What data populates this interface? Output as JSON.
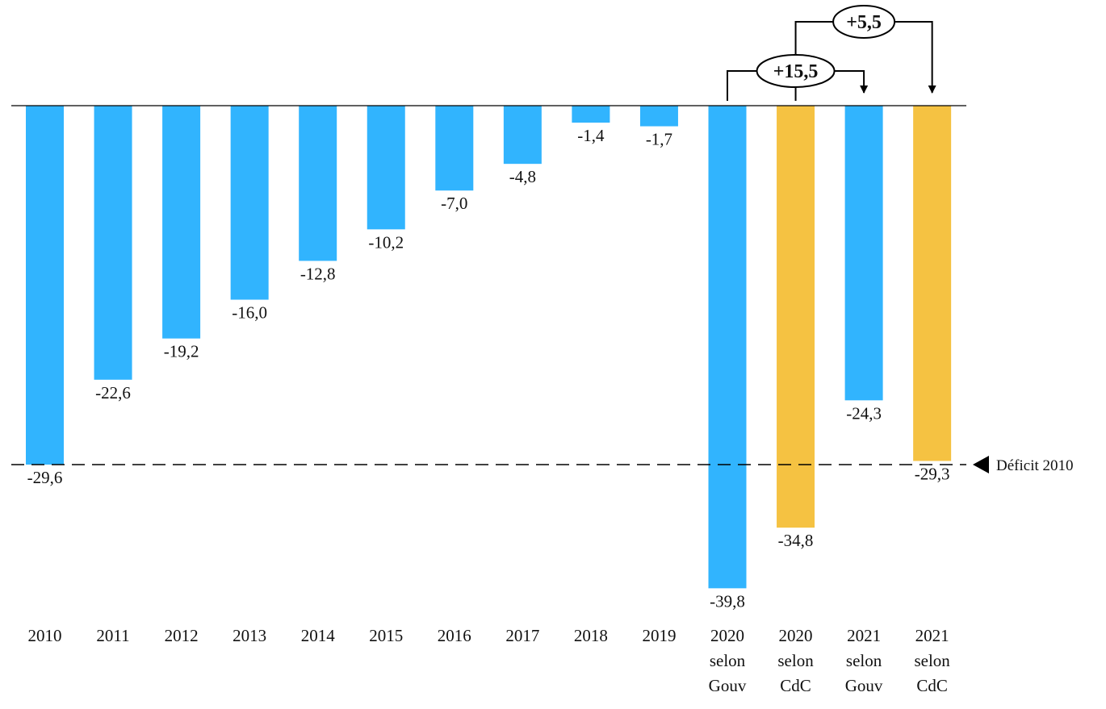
{
  "chart_data": {
    "type": "bar",
    "title": "",
    "xlabel": "",
    "ylabel": "",
    "ylim": [
      -39.8,
      0
    ],
    "grid": false,
    "categories": [
      [
        "2010"
      ],
      [
        "2011"
      ],
      [
        "2012"
      ],
      [
        "2013"
      ],
      [
        "2014"
      ],
      [
        "2015"
      ],
      [
        "2016"
      ],
      [
        "2017"
      ],
      [
        "2018"
      ],
      [
        "2019"
      ],
      [
        "2020",
        "selon",
        "Gouv"
      ],
      [
        "2020",
        "selon",
        "CdC"
      ],
      [
        "2021",
        "selon",
        "Gouv"
      ],
      [
        "2021",
        "selon",
        "CdC"
      ]
    ],
    "values": [
      -29.6,
      -22.6,
      -19.2,
      -16.0,
      -12.8,
      -10.2,
      -7.0,
      -4.8,
      -1.4,
      -1.7,
      -39.8,
      -34.8,
      -24.3,
      -29.3
    ],
    "value_labels": [
      "-29,6",
      "-22,6",
      "-19,2",
      "-16,0",
      "-12,8",
      "-10,2",
      "-7,0",
      "-4,8",
      "-1,4",
      "-1,7",
      "-39,8",
      "-34,8",
      "-24,3",
      "-29,3"
    ],
    "bar_colors": [
      "#31b4fe",
      "#31b4fe",
      "#31b4fe",
      "#31b4fe",
      "#31b4fe",
      "#31b4fe",
      "#31b4fe",
      "#31b4fe",
      "#31b4fe",
      "#31b4fe",
      "#31b4fe",
      "#f5c242",
      "#31b4fe",
      "#f5c242"
    ],
    "reference_line": {
      "value": -29.6,
      "label": "Déficit 2010",
      "style": "dashed"
    },
    "annotations": [
      {
        "label": "+15,5",
        "from": 10,
        "to": 12
      },
      {
        "label": "+5,5",
        "from": 11,
        "to": 13
      }
    ]
  }
}
